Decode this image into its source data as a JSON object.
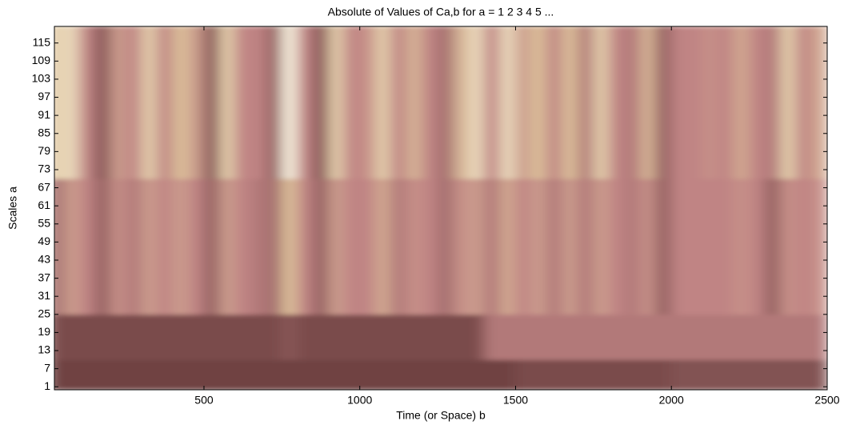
{
  "chart_data": {
    "type": "heatmap",
    "title": "Absolute of Values of Ca,b for a =  1 2 3 4 5 ...",
    "xlabel": "Time (or Space) b",
    "ylabel": "Scales a",
    "xlim": [
      20,
      2500
    ],
    "ylim": [
      0,
      120.5
    ],
    "xticks": [
      500,
      1000,
      1500,
      2000,
      2500
    ],
    "yticks": [
      1,
      7,
      13,
      19,
      25,
      31,
      37,
      43,
      49,
      55,
      61,
      67,
      73,
      79,
      85,
      91,
      97,
      103,
      109,
      115
    ],
    "colormap": [
      "#1e0404",
      "#7a4c4c",
      "#c08484",
      "#dcc09a",
      "#fffff0"
    ],
    "xbins": [
      0,
      50,
      100,
      150,
      200,
      250,
      300,
      350,
      400,
      450,
      500,
      550,
      600,
      650,
      700,
      750,
      800,
      850,
      900,
      950,
      1000,
      1050,
      1100,
      1150,
      1200,
      1250,
      1300,
      1350,
      1400,
      1450,
      1500,
      1550,
      1600,
      1650,
      1700,
      1750,
      1800,
      1850,
      1900,
      1950,
      2000,
      2050,
      2100,
      2150,
      2200,
      2250,
      2300,
      2350,
      2400,
      2450,
      2500
    ],
    "ybins": [
      0,
      10,
      25,
      70,
      120.5
    ],
    "values": [
      [
        0.22,
        0.22,
        0.22,
        0.22,
        0.22,
        0.22,
        0.22,
        0.22,
        0.22,
        0.22,
        0.22,
        0.22,
        0.22,
        0.22,
        0.22,
        0.22,
        0.22,
        0.22,
        0.22,
        0.22,
        0.22,
        0.22,
        0.22,
        0.22,
        0.22,
        0.22,
        0.22,
        0.22,
        0.22,
        0.22,
        0.25,
        0.25,
        0.25,
        0.25,
        0.25,
        0.25,
        0.25,
        0.25,
        0.25,
        0.25,
        0.28,
        0.28,
        0.28,
        0.28,
        0.28,
        0.28,
        0.28,
        0.28,
        0.28,
        0.28
      ],
      [
        0.25,
        0.25,
        0.25,
        0.25,
        0.25,
        0.25,
        0.25,
        0.25,
        0.25,
        0.25,
        0.25,
        0.25,
        0.25,
        0.25,
        0.25,
        0.3,
        0.25,
        0.25,
        0.25,
        0.25,
        0.25,
        0.25,
        0.25,
        0.25,
        0.25,
        0.25,
        0.25,
        0.25,
        0.45,
        0.45,
        0.45,
        0.45,
        0.45,
        0.45,
        0.45,
        0.45,
        0.45,
        0.45,
        0.45,
        0.45,
        0.45,
        0.45,
        0.45,
        0.45,
        0.45,
        0.45,
        0.45,
        0.45,
        0.45,
        0.45
      ],
      [
        0.4,
        0.6,
        0.5,
        0.35,
        0.55,
        0.45,
        0.6,
        0.5,
        0.6,
        0.5,
        0.35,
        0.6,
        0.5,
        0.45,
        0.4,
        0.75,
        0.5,
        0.35,
        0.6,
        0.5,
        0.5,
        0.65,
        0.45,
        0.55,
        0.5,
        0.4,
        0.55,
        0.6,
        0.45,
        0.65,
        0.5,
        0.6,
        0.45,
        0.6,
        0.45,
        0.6,
        0.5,
        0.45,
        0.55,
        0.35,
        0.5,
        0.5,
        0.5,
        0.5,
        0.55,
        0.5,
        0.35,
        0.55,
        0.5,
        0.55
      ],
      [
        0.8,
        0.85,
        0.5,
        0.3,
        0.6,
        0.5,
        0.8,
        0.5,
        0.75,
        0.6,
        0.3,
        0.8,
        0.5,
        0.5,
        0.35,
        0.95,
        0.5,
        0.3,
        0.8,
        0.5,
        0.55,
        0.8,
        0.5,
        0.7,
        0.5,
        0.4,
        0.7,
        0.85,
        0.5,
        0.85,
        0.6,
        0.75,
        0.5,
        0.75,
        0.45,
        0.8,
        0.5,
        0.45,
        0.7,
        0.35,
        0.5,
        0.5,
        0.55,
        0.5,
        0.65,
        0.5,
        0.45,
        0.8,
        0.5,
        0.65
      ]
    ]
  }
}
